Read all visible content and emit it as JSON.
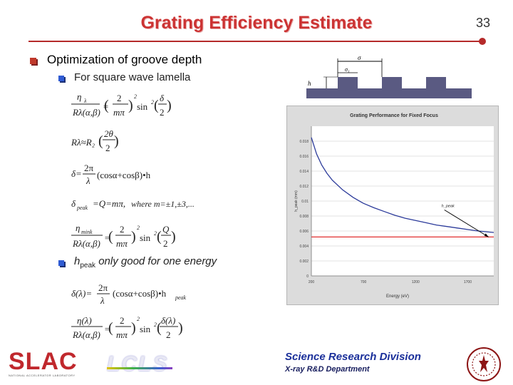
{
  "slide": {
    "title": "Grating Efficiency Estimate",
    "number": "33",
    "bullet1": "Optimization of groove depth",
    "bullet2": "For square wave lamella",
    "bullet3_main": "h",
    "bullet3_sub": "peak",
    "bullet3_rest": " only good for one energy"
  },
  "equations": {
    "eq5_text": "where m=±1,±3,..."
  },
  "diagram": {
    "sigma_label": "σ",
    "sigma1_label": "σ₁",
    "h_label": "h"
  },
  "footer": {
    "division": "Science Research Division",
    "department": "X-ray R&D Department",
    "logo_slac": "SLAC",
    "logo_slac_sub": "NATIONAL ACCELERATOR LABORATORY",
    "logo_lcls": "LCLS"
  },
  "chart_data": {
    "type": "line",
    "title": "Grating Performance for Fixed Focus",
    "xlabel": "Energy (eV)",
    "ylabel": "h_peak (mm)",
    "xlim": [
      200,
      1950
    ],
    "ylim": [
      0,
      0.02
    ],
    "x_ticks": [
      200,
      700,
      1200,
      1700
    ],
    "y_ticks": [
      0,
      0.002,
      0.004,
      0.006,
      0.008,
      0.01,
      0.012,
      0.014,
      0.016,
      0.018
    ],
    "y_tick_labels": [
      "0",
      "0.002",
      "0.004",
      "0.006",
      "0.008",
      "0.01",
      "0.012",
      "0.014",
      "0.016",
      "0.018"
    ],
    "series": [
      {
        "color": "#2b3a9a",
        "x": [
          200,
          250,
          300,
          350,
          400,
          500,
          600,
          700,
          800,
          900,
          1000,
          1100,
          1200,
          1300,
          1400,
          1500,
          1600,
          1700,
          1800,
          1950
        ],
        "y": [
          0.0185,
          0.0163,
          0.0148,
          0.0137,
          0.0128,
          0.0115,
          0.0105,
          0.0097,
          0.0091,
          0.0086,
          0.0081,
          0.0077,
          0.0074,
          0.0071,
          0.0068,
          0.0066,
          0.0064,
          0.0062,
          0.006,
          0.0058
        ]
      },
      {
        "color": "#e23030",
        "x": [
          200,
          1950
        ],
        "y": [
          0.0052,
          0.0052
        ]
      }
    ],
    "annotation": {
      "label": "h_peak",
      "x": 1900,
      "y": 0.0052
    }
  }
}
